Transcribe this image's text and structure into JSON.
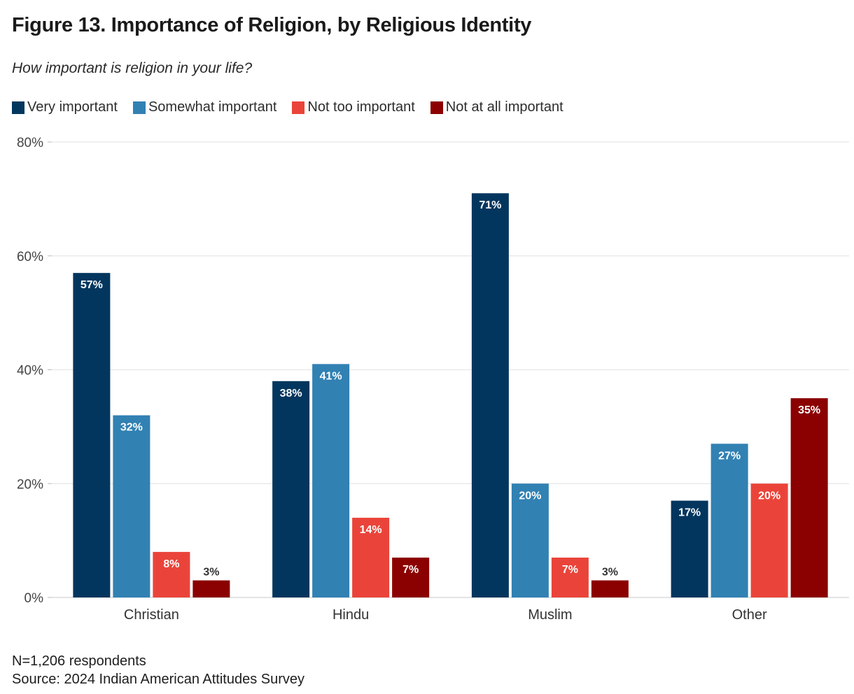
{
  "title": "Figure 13. Importance of Religion, by Religious Identity",
  "subtitle": "How important is religion in your life?",
  "footer": {
    "n": "N=1,206 respondents",
    "source": "Source: 2024 Indian American Attitudes Survey"
  },
  "chart_data": {
    "type": "bar",
    "categories": [
      "Christian",
      "Hindu",
      "Muslim",
      "Other"
    ],
    "series": [
      {
        "name": "Very important",
        "color": "#03365e",
        "labels": [
          "57%",
          "38%",
          "71%",
          "17%"
        ],
        "values": [
          57,
          38,
          71,
          17
        ]
      },
      {
        "name": "Somewhat important",
        "color": "#3181b3",
        "labels": [
          "32%",
          "41%",
          "20%",
          "27%"
        ],
        "values": [
          32,
          41,
          20,
          27
        ]
      },
      {
        "name": "Not too important",
        "color": "#ea443a",
        "labels": [
          "8%",
          "14%",
          "7%",
          "20%"
        ],
        "values": [
          8,
          14,
          7,
          20
        ]
      },
      {
        "name": "Not at all important",
        "color": "#8b0000",
        "labels": [
          "3%",
          "7%",
          "3%",
          "35%"
        ],
        "values": [
          3,
          7,
          3,
          35
        ]
      }
    ],
    "yticks": [
      "0%",
      "20%",
      "40%",
      "60%",
      "80%"
    ],
    "ytick_values": [
      0,
      20,
      40,
      60,
      80
    ],
    "ylim": [
      0,
      80
    ],
    "xlabel": "",
    "ylabel": "",
    "grid": true,
    "legend_position": "top-left"
  }
}
